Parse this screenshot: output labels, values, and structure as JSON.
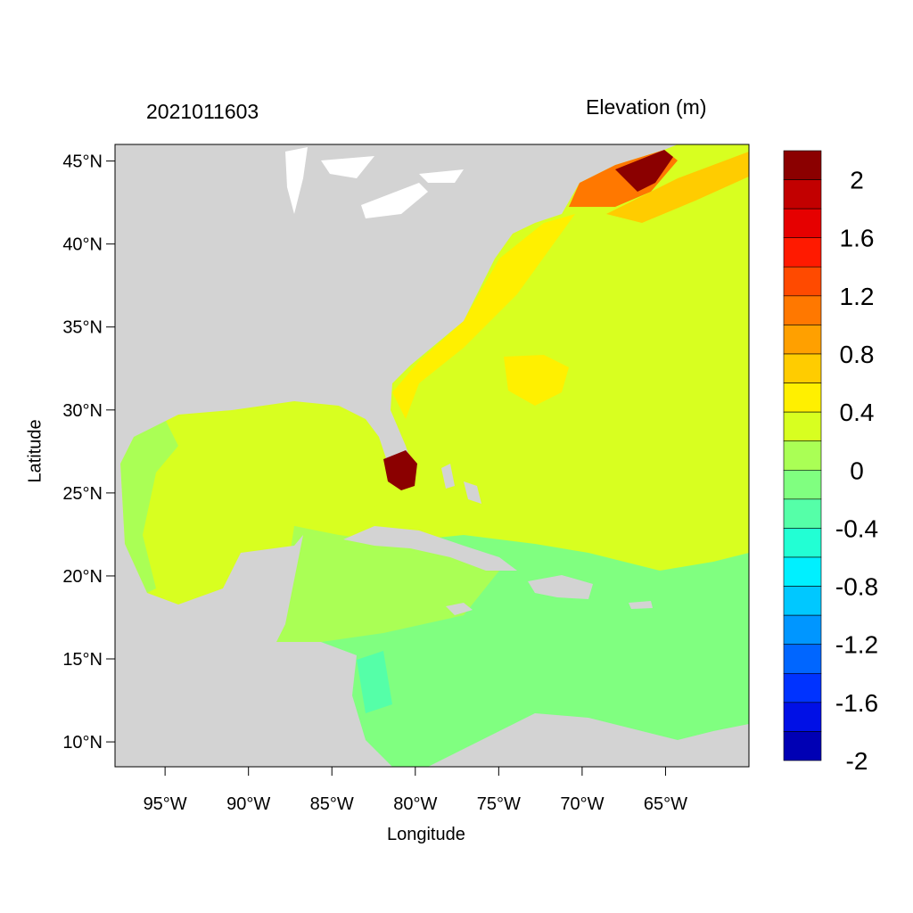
{
  "header": {
    "timestamp": "2021011603",
    "variable_title": "Elevation (m)"
  },
  "axes": {
    "xlabel": "Longitude",
    "ylabel": "Latitude",
    "lon_range": [
      -98,
      -60
    ],
    "lat_range": [
      8.5,
      46
    ],
    "x_ticks": [
      {
        "lon": -95,
        "label": "95°W"
      },
      {
        "lon": -90,
        "label": "90°W"
      },
      {
        "lon": -85,
        "label": "85°W"
      },
      {
        "lon": -80,
        "label": "80°W"
      },
      {
        "lon": -75,
        "label": "75°W"
      },
      {
        "lon": -70,
        "label": "70°W"
      },
      {
        "lon": -65,
        "label": "65°W"
      }
    ],
    "y_ticks": [
      {
        "lat": 45,
        "label": "45°N"
      },
      {
        "lat": 40,
        "label": "40°N"
      },
      {
        "lat": 35,
        "label": "35°N"
      },
      {
        "lat": 30,
        "label": "30°N"
      },
      {
        "lat": 25,
        "label": "25°N"
      },
      {
        "lat": 20,
        "label": "20°N"
      },
      {
        "lat": 15,
        "label": "15°N"
      },
      {
        "lat": 10,
        "label": "10°N"
      }
    ]
  },
  "colorbar": {
    "colors_top_to_bottom": [
      "#8b0000",
      "#c20000",
      "#e60000",
      "#ff1a00",
      "#ff4a00",
      "#ff7800",
      "#ffa000",
      "#ffcc00",
      "#fff000",
      "#d8ff20",
      "#aaff55",
      "#80ff80",
      "#55ffa8",
      "#22ffd4",
      "#00f0ff",
      "#00c8ff",
      "#0096ff",
      "#0066ff",
      "#0033ff",
      "#0010e6",
      "#0000b4"
    ],
    "labels": [
      "2",
      "1.6",
      "1.2",
      "0.8",
      "0.4",
      "0",
      "-0.4",
      "-0.8",
      "-1.2",
      "-1.6",
      "-2"
    ]
  },
  "colors": {
    "land": "#d3d3d3",
    "lakes": "#ffffff",
    "atlantic_main": "#d8ff20",
    "caribbean": "#80ff80",
    "gulf": "#d8ff20",
    "gulf_edge": "#aaff55",
    "shelf_yellow": "#fff000",
    "gulf_of_maine": "#8b0000",
    "south_florida": "#8b0000"
  }
}
